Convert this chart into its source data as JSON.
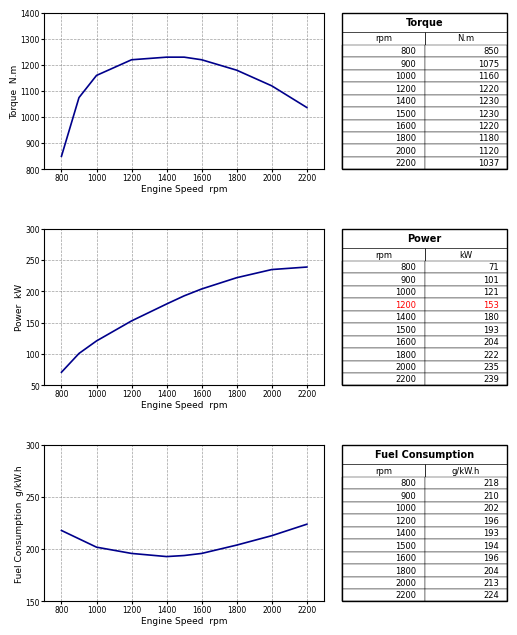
{
  "rpm": [
    800,
    900,
    1000,
    1200,
    1400,
    1500,
    1600,
    1800,
    2000,
    2200
  ],
  "torque": [
    850,
    1075,
    1160,
    1220,
    1230,
    1230,
    1220,
    1180,
    1120,
    1037
  ],
  "power": [
    71,
    101,
    121,
    153,
    180,
    193,
    204,
    222,
    235,
    239
  ],
  "fuel": [
    218,
    210,
    202,
    196,
    193,
    194,
    196,
    204,
    213,
    224
  ],
  "torque_ylim": [
    800,
    1400
  ],
  "torque_yticks": [
    800,
    900,
    1000,
    1100,
    1200,
    1300,
    1400
  ],
  "power_ylim": [
    50,
    300
  ],
  "power_yticks": [
    50,
    100,
    150,
    200,
    250,
    300
  ],
  "fuel_ylim": [
    150,
    300
  ],
  "fuel_yticks": [
    150,
    200,
    250,
    300
  ],
  "xlim": [
    700,
    2300
  ],
  "xticks": [
    800,
    1000,
    1200,
    1400,
    1600,
    1800,
    2000,
    2200
  ],
  "line_color": "#00008B",
  "grid_color": "#888888",
  "bg_color": "#ffffff",
  "xlabel": "Engine Speed  rpm",
  "torque_ylabel": "Torque  N.m",
  "power_ylabel": "Power  kW",
  "fuel_ylabel": "Fuel Consumption  g/kW.h",
  "torque_table_title": "Torque",
  "torque_table_col2": "N.m",
  "power_table_title": "Power",
  "power_table_col2": "kW",
  "fuel_table_title": "Fuel Consumption",
  "fuel_table_col2": "g/kW.h",
  "col1_header": "rpm",
  "power_red_row": 3
}
